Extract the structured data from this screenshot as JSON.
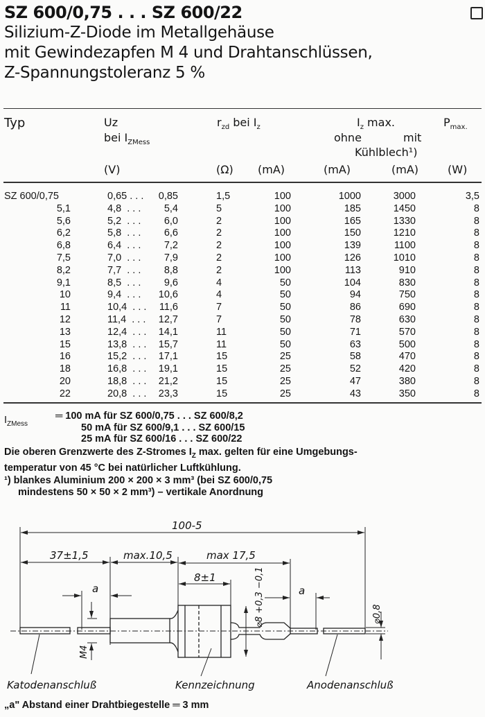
{
  "header": {
    "title": "SZ 600/0,75 . . . SZ 600/22",
    "subtitle_lines": [
      "Silizium-Z-Diode im Metallgehäuse",
      "mit Gewindezapfen M 4 und Drahtanschlüssen,",
      "Z-Spannungstoleranz 5 %"
    ]
  },
  "table": {
    "headers": {
      "typ": "Typ",
      "uz": "Uz",
      "uz_sub": "bei I",
      "uz_sub_index": "ZMess",
      "rzd": "r",
      "rzd_index": "zd",
      "rzd_rest": " bei I",
      "rzd_rest_index": "z",
      "iz_max": "I",
      "iz_max_index": "z",
      "iz_max_rest": " max.",
      "ohne": "ohne",
      "mit": "mit",
      "kuehlblech": "Kühlblech¹)",
      "pmax": "P",
      "pmax_index": "max.",
      "units": [
        "(V)",
        "(Ω)",
        "(mA)",
        "(mA)",
        "(mA)",
        "(W)"
      ]
    },
    "rows": [
      [
        "SZ 600/0,75",
        "0,65 . . .",
        "0,85",
        "1,5",
        "100",
        "1000",
        "3000",
        "3,5"
      ],
      [
        "5,1",
        "4,8  . . .",
        "5,4",
        "5",
        "100",
        "185",
        "1450",
        "8"
      ],
      [
        "5,6",
        "5,2  . . .",
        "6,0",
        "2",
        "100",
        "165",
        "1330",
        "8"
      ],
      [
        "6,2",
        "5,8  . . .",
        "6,6",
        "2",
        "100",
        "150",
        "1210",
        "8"
      ],
      [
        "6,8",
        "6,4  . . .",
        "7,2",
        "2",
        "100",
        "139",
        "1100",
        "8"
      ],
      [
        "7,5",
        "7,0  . . .",
        "7,9",
        "2",
        "100",
        "126",
        "1010",
        "8"
      ],
      [
        "8,2",
        "7,7  . . .",
        "8,8",
        "2",
        "100",
        "113",
        "910",
        "8"
      ],
      [
        "9,1",
        "8,5  . . .",
        "9,6",
        "4",
        "50",
        "104",
        "830",
        "8"
      ],
      [
        "10",
        "9,4  . . .",
        "10,6",
        "4",
        "50",
        "94",
        "750",
        "8"
      ],
      [
        "11",
        "10,4  . . .",
        "11,6",
        "7",
        "50",
        "86",
        "690",
        "8"
      ],
      [
        "12",
        "11,4  . . .",
        "12,7",
        "7",
        "50",
        "78",
        "630",
        "8"
      ],
      [
        "13",
        "12,4  . . .",
        "14,1",
        "11",
        "50",
        "71",
        "570",
        "8"
      ],
      [
        "15",
        "13,8  . . .",
        "15,7",
        "11",
        "50",
        "63",
        "500",
        "8"
      ],
      [
        "16",
        "15,2  . . .",
        "17,1",
        "15",
        "25",
        "58",
        "470",
        "8"
      ],
      [
        "18",
        "16,8  . . .",
        "19,1",
        "15",
        "25",
        "52",
        "420",
        "8"
      ],
      [
        "20",
        "18,8  . . .",
        "21,2",
        "15",
        "25",
        "47",
        "380",
        "8"
      ],
      [
        "22",
        "20,8  . . .",
        "23,3",
        "15",
        "25",
        "43",
        "350",
        "8"
      ]
    ]
  },
  "notes": {
    "izmess_label": "I",
    "izmess_index": "ZMess",
    "izmess_lines": [
      "═ 100 mA für SZ 600/0,75 . . . SZ 600/8,2",
      "50 mA für SZ 600/9,1  . . . SZ 600/15",
      "25 mA für SZ 600/16   . . . SZ 600/22"
    ],
    "limit_line1": "Die oberen Grenzwerte des Z-Stromes I",
    "limit_line1_index": "Z",
    "limit_line1_rest": " max. gelten für eine Umgebungs-",
    "limit_line2": "temperatur von 45 °C bei natürlicher Luftkühlung.",
    "footnote_line1": "¹)  blankes Aluminium 200 × 200 × 3 mm³ (bei SZ 600/0,75",
    "footnote_line2": "mindestens 50 × 50 × 2 mm³) – vertikale Anordnung"
  },
  "drawing": {
    "dim_total": "100-5",
    "dim_lead": "37±1,5",
    "dim_thread": "max.10,5",
    "dim_body_total": "max 17,5",
    "dim_body": "8±1",
    "dim_a": "a",
    "dim_diameter": "⌀8 +0,3 −0,1",
    "dim_wire": "⌀0,8",
    "dim_thread_size": "M4",
    "label_cathode": "Katodenanschluß",
    "label_marking": "Kennzeichnung",
    "label_anode": "Anodenanschluß",
    "footer": "„a\" Abstand einer Drahtbiegestelle ═ 3 mm"
  }
}
